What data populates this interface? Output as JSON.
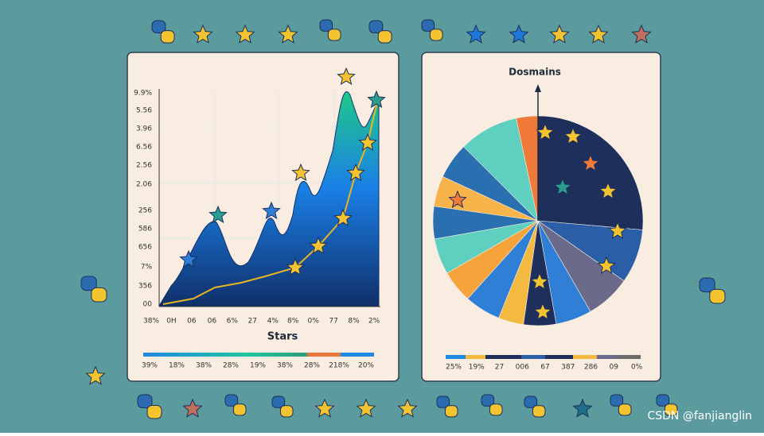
{
  "left_panel": {
    "title": "Stars",
    "y_labels": [
      "9.9%",
      "5.56",
      "3.96",
      "6.56",
      "2.56",
      "2.06",
      "256",
      "586",
      "656",
      "7%",
      "356",
      "00"
    ],
    "x_labels": [
      "38%",
      "0H",
      "06",
      "06",
      "6%",
      "27",
      "4%",
      "8%",
      "0%",
      "77",
      "8%",
      "2%"
    ],
    "legend_labels": [
      "39%",
      "18%",
      "38%",
      "28%",
      "19%",
      "38%",
      "28%",
      "218%",
      "20%"
    ]
  },
  "right_panel": {
    "title": "Dosmains",
    "legend_labels": [
      "25%",
      "19%",
      "27",
      "006",
      "67",
      "387",
      "286",
      "09",
      "0%"
    ]
  },
  "watermark": "CSDN @fanjianglin"
}
